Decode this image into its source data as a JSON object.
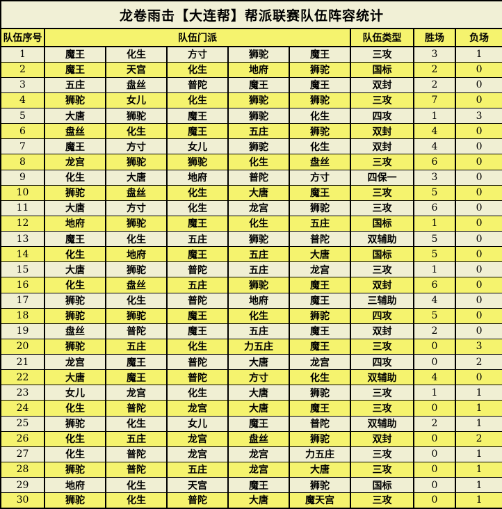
{
  "title": "龙卷雨击【大连帮】帮派联赛队伍阵容统计",
  "colors": {
    "row_odd": "#F0EFD3",
    "row_even": "#F5F36E",
    "header_bg": "#F5F36E",
    "title_bg": "#F1F0D6",
    "border": "#000000"
  },
  "table": {
    "headers": {
      "index": "队伍序号",
      "schools": "队伍门派",
      "type": "队伍类型",
      "wins": "胜场",
      "losses": "负场"
    },
    "rows": [
      {
        "index": "1",
        "schools": [
          "魔王",
          "化生",
          "方寸",
          "狮驼",
          "魔王"
        ],
        "type": "三攻",
        "wins": "3",
        "losses": "1"
      },
      {
        "index": "2",
        "schools": [
          "魔王",
          "天宫",
          "化生",
          "地府",
          "狮驼"
        ],
        "type": "国标",
        "wins": "2",
        "losses": "0"
      },
      {
        "index": "3",
        "schools": [
          "五庄",
          "盘丝",
          "普陀",
          "魔王",
          "魔王"
        ],
        "type": "双封",
        "wins": "2",
        "losses": "0"
      },
      {
        "index": "4",
        "schools": [
          "狮驼",
          "女儿",
          "化生",
          "狮驼",
          "狮驼"
        ],
        "type": "三攻",
        "wins": "7",
        "losses": "0"
      },
      {
        "index": "5",
        "schools": [
          "大唐",
          "狮驼",
          "魔王",
          "狮驼",
          "化生"
        ],
        "type": "四攻",
        "wins": "1",
        "losses": "3"
      },
      {
        "index": "6",
        "schools": [
          "盘丝",
          "化生",
          "魔王",
          "五庄",
          "狮驼"
        ],
        "type": "双封",
        "wins": "4",
        "losses": "0"
      },
      {
        "index": "7",
        "schools": [
          "魔王",
          "方寸",
          "女儿",
          "狮驼",
          "化生"
        ],
        "type": "双封",
        "wins": "4",
        "losses": "0"
      },
      {
        "index": "8",
        "schools": [
          "龙宫",
          "狮驼",
          "狮驼",
          "化生",
          "盘丝"
        ],
        "type": "三攻",
        "wins": "6",
        "losses": "0"
      },
      {
        "index": "9",
        "schools": [
          "化生",
          "大唐",
          "地府",
          "普陀",
          "方寸"
        ],
        "type": "四保一",
        "wins": "3",
        "losses": "0"
      },
      {
        "index": "10",
        "schools": [
          "狮驼",
          "盘丝",
          "化生",
          "大唐",
          "魔王"
        ],
        "type": "三攻",
        "wins": "5",
        "losses": "0"
      },
      {
        "index": "11",
        "schools": [
          "大唐",
          "方寸",
          "化生",
          "龙宫",
          "狮驼"
        ],
        "type": "三攻",
        "wins": "6",
        "losses": "0"
      },
      {
        "index": "12",
        "schools": [
          "地府",
          "狮驼",
          "魔王",
          "化生",
          "五庄"
        ],
        "type": "国标",
        "wins": "1",
        "losses": "0"
      },
      {
        "index": "13",
        "schools": [
          "魔王",
          "化生",
          "五庄",
          "狮驼",
          "普陀"
        ],
        "type": "双辅助",
        "wins": "5",
        "losses": "0"
      },
      {
        "index": "14",
        "schools": [
          "化生",
          "地府",
          "魔王",
          "五庄",
          "大唐"
        ],
        "type": "国标",
        "wins": "5",
        "losses": "0"
      },
      {
        "index": "15",
        "schools": [
          "大唐",
          "狮驼",
          "普陀",
          "五庄",
          "龙宫"
        ],
        "type": "三攻",
        "wins": "1",
        "losses": "0"
      },
      {
        "index": "16",
        "schools": [
          "化生",
          "盘丝",
          "五庄",
          "狮驼",
          "魔王"
        ],
        "type": "双封",
        "wins": "6",
        "losses": "0"
      },
      {
        "index": "17",
        "schools": [
          "狮驼",
          "化生",
          "普陀",
          "地府",
          "魔王"
        ],
        "type": "三辅助",
        "wins": "4",
        "losses": "0"
      },
      {
        "index": "18",
        "schools": [
          "狮驼",
          "狮驼",
          "魔王",
          "化生",
          "狮驼"
        ],
        "type": "四攻",
        "wins": "5",
        "losses": "0"
      },
      {
        "index": "19",
        "schools": [
          "盘丝",
          "普陀",
          "魔王",
          "五庄",
          "魔王"
        ],
        "type": "双封",
        "wins": "2",
        "losses": "0"
      },
      {
        "index": "20",
        "schools": [
          "狮驼",
          "五庄",
          "化生",
          "力五庄",
          "魔王"
        ],
        "type": "三攻",
        "wins": "0",
        "losses": "3"
      },
      {
        "index": "21",
        "schools": [
          "龙宫",
          "魔王",
          "普陀",
          "大唐",
          "龙宫"
        ],
        "type": "四攻",
        "wins": "0",
        "losses": "2"
      },
      {
        "index": "22",
        "schools": [
          "大唐",
          "魔王",
          "普陀",
          "方寸",
          "化生"
        ],
        "type": "双辅助",
        "wins": "4",
        "losses": "0"
      },
      {
        "index": "23",
        "schools": [
          "女儿",
          "龙宫",
          "化生",
          "大唐",
          "狮驼"
        ],
        "type": "三攻",
        "wins": "1",
        "losses": "1"
      },
      {
        "index": "24",
        "schools": [
          "化生",
          "普陀",
          "龙宫",
          "大唐",
          "魔王"
        ],
        "type": "三攻",
        "wins": "0",
        "losses": "1"
      },
      {
        "index": "25",
        "schools": [
          "狮驼",
          "化生",
          "女儿",
          "魔王",
          "普陀"
        ],
        "type": "双辅助",
        "wins": "2",
        "losses": "1"
      },
      {
        "index": "26",
        "schools": [
          "化生",
          "五庄",
          "龙宫",
          "盘丝",
          "狮驼"
        ],
        "type": "双封",
        "wins": "0",
        "losses": "2"
      },
      {
        "index": "27",
        "schools": [
          "化生",
          "普陀",
          "龙宫",
          "龙宫",
          "力五庄"
        ],
        "type": "三攻",
        "wins": "0",
        "losses": "1"
      },
      {
        "index": "28",
        "schools": [
          "狮驼",
          "普陀",
          "五庄",
          "龙宫",
          "大唐"
        ],
        "type": "三攻",
        "wins": "0",
        "losses": "1"
      },
      {
        "index": "29",
        "schools": [
          "地府",
          "化生",
          "天宫",
          "魔王",
          "狮驼"
        ],
        "type": "国标",
        "wins": "0",
        "losses": "1"
      },
      {
        "index": "30",
        "schools": [
          "狮驼",
          "化生",
          "普陀",
          "大唐",
          "魔天宫"
        ],
        "type": "三攻",
        "wins": "0",
        "losses": "1"
      }
    ]
  }
}
